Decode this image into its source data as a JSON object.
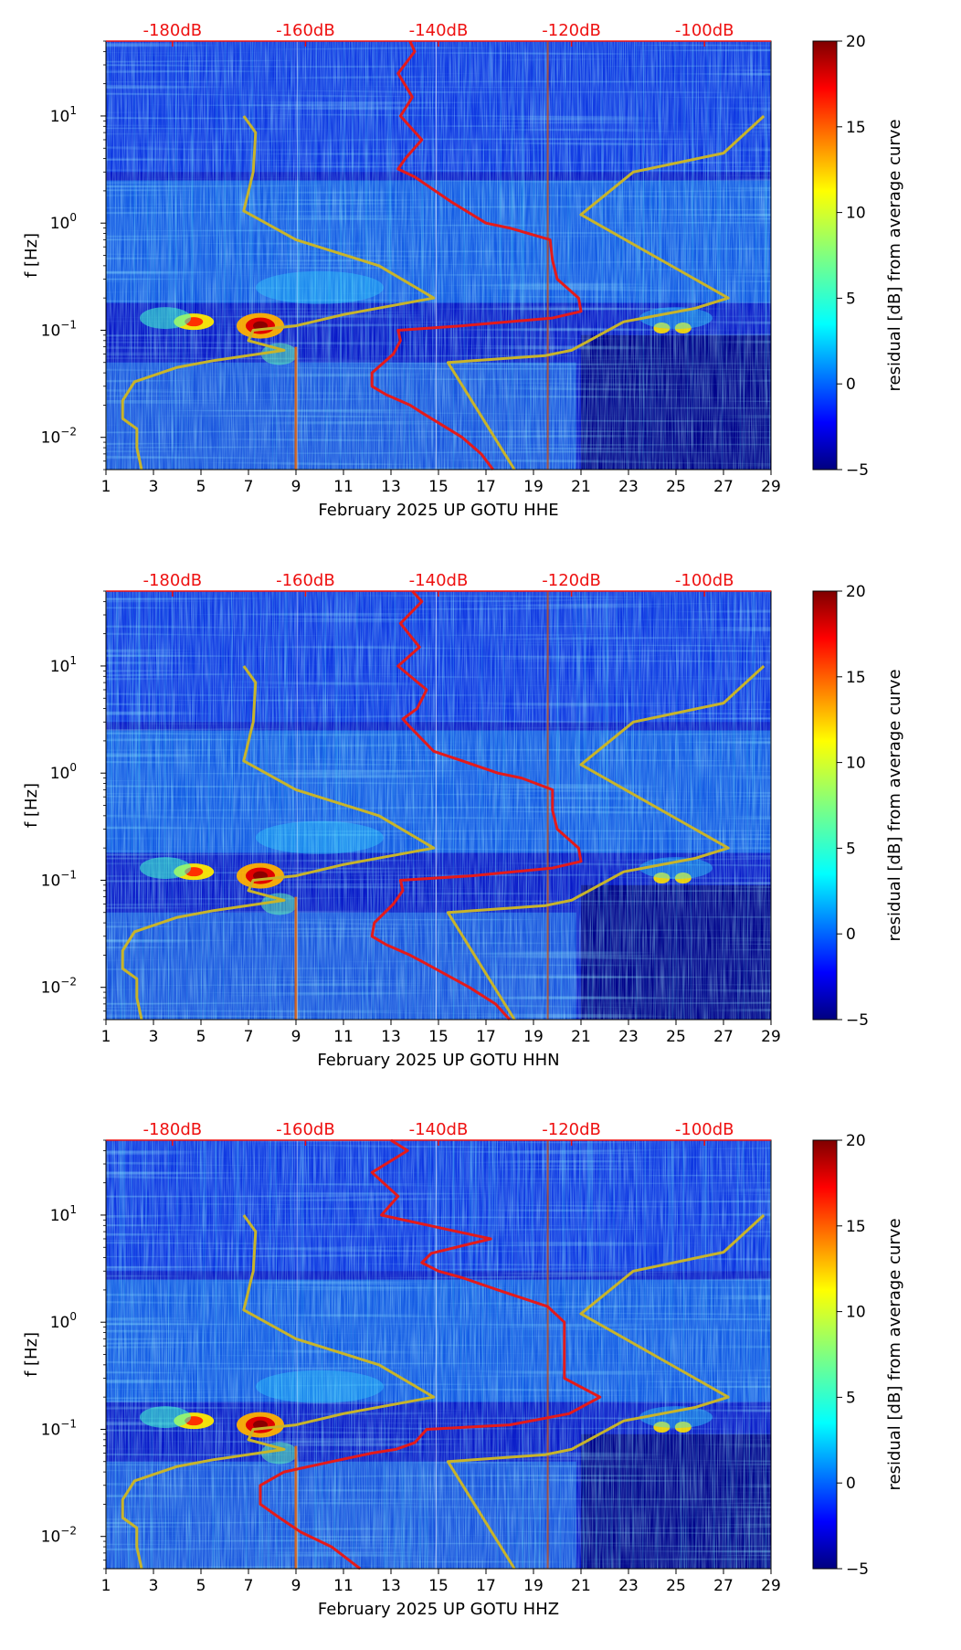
{
  "figure": {
    "colorbar_label": "residual [dB] from average curve"
  },
  "shared": {
    "x_ticks": [
      "1",
      "3",
      "5",
      "7",
      "9",
      "11",
      "13",
      "15",
      "17",
      "19",
      "21",
      "23",
      "25",
      "27",
      "29"
    ],
    "y_ticks": [
      {
        "base": "10",
        "exp": "1",
        "value": 10
      },
      {
        "base": "10",
        "exp": "0",
        "value": 1
      },
      {
        "base": "10",
        "exp": "−1",
        "value": 0.1
      },
      {
        "base": "10",
        "exp": "−2",
        "value": 0.01
      }
    ],
    "y_label": "f [Hz]",
    "top_ticks": [
      "-180dB",
      "-160dB",
      "-140dB",
      "-120dB",
      "-100dB"
    ],
    "colorbar_ticks": [
      "20",
      "15",
      "10",
      "5",
      "0",
      "−5"
    ],
    "colors": {
      "red_curve": "#e41a1a",
      "gold_curve": "#c8b42a",
      "db_text": "#ee1111",
      "cmap": [
        "#00007f",
        "#0000ff",
        "#0080ff",
        "#00ffff",
        "#80ff80",
        "#ffff00",
        "#ff8000",
        "#ff0000",
        "#7f0000"
      ]
    }
  },
  "chart_data": [
    {
      "type": "heatmap",
      "title": "",
      "xlabel": "February 2025 UP GOTU  HHE",
      "ylabel": "f [Hz]",
      "xlim": [
        1,
        29
      ],
      "ylim": [
        0.005,
        50
      ],
      "yscale": "log",
      "top_axis": {
        "label_values_db": [
          -180,
          -160,
          -140,
          -120,
          -100
        ],
        "range_db": [
          -190,
          -90
        ]
      },
      "colorbar": {
        "label": "residual [dB] from average curve",
        "range": [
          -5,
          20
        ],
        "ticks": [
          20,
          15,
          10,
          5,
          0,
          -5
        ]
      },
      "series": [
        {
          "name": "gold_curve",
          "points": [
            [
              2.5,
              0.005
            ],
            [
              2.3,
              0.008
            ],
            [
              2.3,
              0.012
            ],
            [
              1.7,
              0.015
            ],
            [
              1.7,
              0.022
            ],
            [
              2.2,
              0.033
            ],
            [
              4,
              0.045
            ],
            [
              5.5,
              0.052
            ],
            [
              8.5,
              0.065
            ],
            [
              7,
              0.08
            ],
            [
              7.2,
              0.1
            ],
            [
              9,
              0.11
            ],
            [
              11,
              0.14
            ],
            [
              14.8,
              0.2
            ],
            [
              12.5,
              0.4
            ],
            [
              9,
              0.7
            ],
            [
              6.8,
              1.3
            ],
            [
              7.2,
              3
            ],
            [
              7.3,
              7
            ],
            [
              6.8,
              10
            ]
          ]
        },
        {
          "name": "gold_curve_right",
          "points": [
            [
              18.2,
              0.005
            ],
            [
              15.4,
              0.05
            ],
            [
              19.5,
              0.058
            ],
            [
              20.6,
              0.065
            ],
            [
              22.8,
              0.12
            ],
            [
              25.8,
              0.16
            ],
            [
              27.2,
              0.2
            ],
            [
              21,
              1.2
            ],
            [
              23.2,
              3
            ],
            [
              27,
              4.5
            ],
            [
              28.7,
              10
            ]
          ]
        },
        {
          "name": "red_curve",
          "points": [
            [
              17.3,
              0.005
            ],
            [
              16.8,
              0.007
            ],
            [
              16,
              0.01
            ],
            [
              14.3,
              0.017
            ],
            [
              13.8,
              0.02
            ],
            [
              12.8,
              0.025
            ],
            [
              12.2,
              0.03
            ],
            [
              12.2,
              0.04
            ],
            [
              13.1,
              0.06
            ],
            [
              13.4,
              0.08
            ],
            [
              13.3,
              0.1
            ],
            [
              16,
              0.11
            ],
            [
              19.8,
              0.13
            ],
            [
              21,
              0.15
            ],
            [
              20.9,
              0.2
            ],
            [
              20,
              0.3
            ],
            [
              19.8,
              0.45
            ],
            [
              19.7,
              0.7
            ],
            [
              18,
              0.9
            ],
            [
              17,
              1
            ],
            [
              15.5,
              1.6
            ],
            [
              14,
              2.7
            ],
            [
              13.3,
              3.2
            ],
            [
              13.6,
              4
            ],
            [
              14.3,
              6
            ],
            [
              13.4,
              10
            ],
            [
              13.9,
              15
            ],
            [
              13.3,
              25
            ],
            [
              14,
              40
            ],
            [
              13.8,
              50
            ]
          ]
        }
      ]
    },
    {
      "type": "heatmap",
      "title": "",
      "xlabel": "February 2025 UP GOTU  HHN",
      "ylabel": "f [Hz]",
      "xlim": [
        1,
        29
      ],
      "ylim": [
        0.005,
        50
      ],
      "yscale": "log",
      "top_axis": {
        "label_values_db": [
          -180,
          -160,
          -140,
          -120,
          -100
        ],
        "range_db": [
          -190,
          -90
        ]
      },
      "colorbar": {
        "label": "residual [dB] from average curve",
        "range": [
          -5,
          20
        ],
        "ticks": [
          20,
          15,
          10,
          5,
          0,
          -5
        ]
      },
      "series": [
        {
          "name": "gold_curve",
          "points": [
            [
              2.5,
              0.005
            ],
            [
              2.3,
              0.008
            ],
            [
              2.3,
              0.012
            ],
            [
              1.7,
              0.015
            ],
            [
              1.7,
              0.022
            ],
            [
              2.2,
              0.033
            ],
            [
              4,
              0.045
            ],
            [
              5.5,
              0.052
            ],
            [
              8.5,
              0.065
            ],
            [
              7,
              0.08
            ],
            [
              7.2,
              0.1
            ],
            [
              9,
              0.11
            ],
            [
              11,
              0.14
            ],
            [
              14.8,
              0.2
            ],
            [
              12.5,
              0.4
            ],
            [
              9,
              0.7
            ],
            [
              6.8,
              1.3
            ],
            [
              7.2,
              3
            ],
            [
              7.3,
              7
            ],
            [
              6.8,
              10
            ]
          ]
        },
        {
          "name": "gold_curve_right",
          "points": [
            [
              18.2,
              0.005
            ],
            [
              15.4,
              0.05
            ],
            [
              19.5,
              0.058
            ],
            [
              20.6,
              0.065
            ],
            [
              22.8,
              0.12
            ],
            [
              25.8,
              0.16
            ],
            [
              27.2,
              0.2
            ],
            [
              21,
              1.2
            ],
            [
              23.2,
              3
            ],
            [
              27,
              4.5
            ],
            [
              28.7,
              10
            ]
          ]
        },
        {
          "name": "red_curve",
          "points": [
            [
              18,
              0.005
            ],
            [
              17.4,
              0.007
            ],
            [
              16.3,
              0.01
            ],
            [
              14.4,
              0.017
            ],
            [
              13.8,
              0.02
            ],
            [
              12.8,
              0.025
            ],
            [
              12.2,
              0.03
            ],
            [
              12.3,
              0.04
            ],
            [
              13.1,
              0.06
            ],
            [
              13.5,
              0.08
            ],
            [
              13.4,
              0.1
            ],
            [
              16.4,
              0.11
            ],
            [
              19.8,
              0.13
            ],
            [
              21,
              0.15
            ],
            [
              20.9,
              0.2
            ],
            [
              20,
              0.3
            ],
            [
              19.8,
              0.45
            ],
            [
              19.8,
              0.7
            ],
            [
              18.5,
              0.9
            ],
            [
              17.5,
              1
            ],
            [
              16,
              1.3
            ],
            [
              14.8,
              1.6
            ],
            [
              13.8,
              2.7
            ],
            [
              13.5,
              3.2
            ],
            [
              14.1,
              4
            ],
            [
              14.5,
              6
            ],
            [
              13.3,
              10
            ],
            [
              14.2,
              15
            ],
            [
              13.4,
              25
            ],
            [
              14.3,
              40
            ],
            [
              13.9,
              50
            ]
          ]
        }
      ]
    },
    {
      "type": "heatmap",
      "title": "",
      "xlabel": "February 2025 UP GOTU  HHZ",
      "ylabel": "f [Hz]",
      "xlim": [
        1,
        29
      ],
      "ylim": [
        0.005,
        50
      ],
      "yscale": "log",
      "top_axis": {
        "label_values_db": [
          -180,
          -160,
          -140,
          -120,
          -100
        ],
        "range_db": [
          -190,
          -90
        ]
      },
      "colorbar": {
        "label": "residual [dB] from average curve",
        "range": [
          -5,
          20
        ],
        "ticks": [
          20,
          15,
          10,
          5,
          0,
          -5
        ]
      },
      "series": [
        {
          "name": "gold_curve",
          "points": [
            [
              2.5,
              0.005
            ],
            [
              2.3,
              0.008
            ],
            [
              2.3,
              0.012
            ],
            [
              1.7,
              0.015
            ],
            [
              1.7,
              0.022
            ],
            [
              2.2,
              0.033
            ],
            [
              4,
              0.045
            ],
            [
              5.5,
              0.052
            ],
            [
              8.5,
              0.065
            ],
            [
              7,
              0.08
            ],
            [
              7.2,
              0.1
            ],
            [
              9,
              0.11
            ],
            [
              11,
              0.14
            ],
            [
              14.8,
              0.2
            ],
            [
              12.5,
              0.4
            ],
            [
              9,
              0.7
            ],
            [
              6.8,
              1.3
            ],
            [
              7.2,
              3
            ],
            [
              7.3,
              7
            ],
            [
              6.8,
              10
            ]
          ]
        },
        {
          "name": "gold_curve_right",
          "points": [
            [
              18.2,
              0.005
            ],
            [
              15.4,
              0.05
            ],
            [
              19.5,
              0.058
            ],
            [
              20.6,
              0.065
            ],
            [
              22.8,
              0.12
            ],
            [
              25.8,
              0.16
            ],
            [
              27.2,
              0.2
            ],
            [
              21,
              1.2
            ],
            [
              23.2,
              3
            ],
            [
              27,
              4.5
            ],
            [
              28.7,
              10
            ]
          ]
        },
        {
          "name": "red_curve",
          "points": [
            [
              11.7,
              0.005
            ],
            [
              10.5,
              0.008
            ],
            [
              9.2,
              0.011
            ],
            [
              8.3,
              0.015
            ],
            [
              7.5,
              0.02
            ],
            [
              7.5,
              0.03
            ],
            [
              8.5,
              0.04
            ],
            [
              10.5,
              0.05
            ],
            [
              12.2,
              0.06
            ],
            [
              13.2,
              0.065
            ],
            [
              14,
              0.075
            ],
            [
              14.5,
              0.1
            ],
            [
              18,
              0.11
            ],
            [
              20.5,
              0.14
            ],
            [
              21.8,
              0.2
            ],
            [
              20.3,
              0.3
            ],
            [
              20.3,
              0.6
            ],
            [
              20.3,
              1.0
            ],
            [
              19.6,
              1.4
            ],
            [
              17.5,
              2
            ],
            [
              16,
              2.6
            ],
            [
              15,
              3
            ],
            [
              14.3,
              3.6
            ],
            [
              14.7,
              4.4
            ],
            [
              17.2,
              6
            ],
            [
              12.6,
              10
            ],
            [
              13.3,
              15
            ],
            [
              12.2,
              25
            ],
            [
              13.7,
              40
            ],
            [
              13.0,
              50
            ]
          ]
        }
      ]
    }
  ]
}
